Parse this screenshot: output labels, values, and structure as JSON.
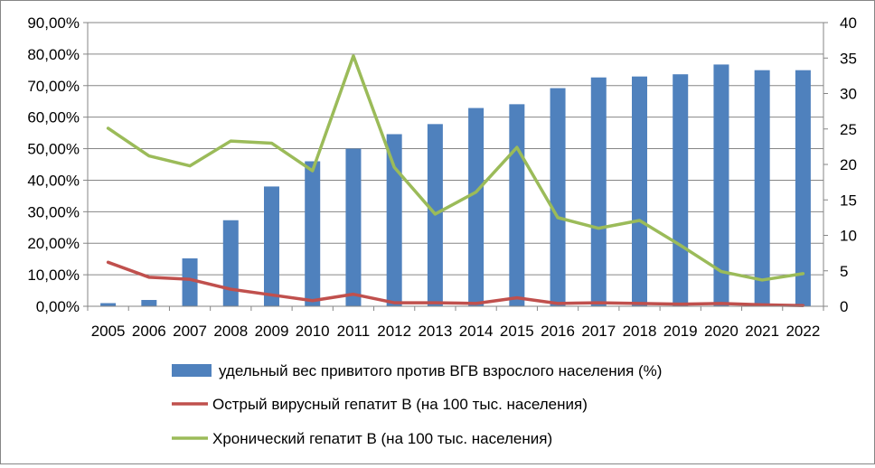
{
  "chart_data": {
    "type": "bar",
    "categories": [
      "2005",
      "2006",
      "2007",
      "2008",
      "2009",
      "2010",
      "2011",
      "2012",
      "2013",
      "2014",
      "2015",
      "2016",
      "2017",
      "2018",
      "2019",
      "2020",
      "2021",
      "2022"
    ],
    "y_left": {
      "range": [
        0,
        90
      ],
      "ticks": [
        0,
        10,
        20,
        30,
        40,
        50,
        60,
        70,
        80,
        90
      ],
      "tick_labels": [
        "0,00%",
        "10,00%",
        "20,00%",
        "30,00%",
        "40,00%",
        "50,00%",
        "60,00%",
        "70,00%",
        "80,00%",
        "90,00%"
      ]
    },
    "y_right": {
      "range": [
        0,
        40
      ],
      "ticks": [
        0,
        5,
        10,
        15,
        20,
        25,
        30,
        35,
        40
      ],
      "tick_labels": [
        "0",
        "5",
        "10",
        "15",
        "20",
        "25",
        "30",
        "35",
        "40"
      ]
    },
    "grid": true,
    "legend_position": "bottom",
    "series": [
      {
        "name": "удельный вес привитого против ВГВ взрослого населения (%)",
        "type": "bar",
        "axis": "left",
        "color": "#4F81BD",
        "values": [
          1.0,
          2.0,
          15.2,
          27.3,
          38.0,
          46.0,
          50.0,
          54.6,
          57.8,
          62.9,
          64.1,
          69.2,
          72.6,
          72.9,
          73.6,
          76.7,
          74.9,
          74.9
        ]
      },
      {
        "name": "Острый вирусный гепатит В (на 100 тыс. населения)",
        "type": "line",
        "axis": "right",
        "color": "#C0504D",
        "values": [
          6.2,
          4.1,
          3.8,
          2.4,
          1.6,
          0.8,
          1.7,
          0.5,
          0.5,
          0.4,
          1.2,
          0.4,
          0.5,
          0.4,
          0.3,
          0.4,
          0.2,
          0.1
        ]
      },
      {
        "name": "Хронический гепатит В (на 100 тыс. населения)",
        "type": "line",
        "axis": "right",
        "color": "#9BBB59",
        "values": [
          25.1,
          21.2,
          19.8,
          23.3,
          23.0,
          19.1,
          35.3,
          19.6,
          13.0,
          16.1,
          22.4,
          12.5,
          11.0,
          12.1,
          8.6,
          4.9,
          3.7,
          4.6
        ]
      }
    ]
  }
}
